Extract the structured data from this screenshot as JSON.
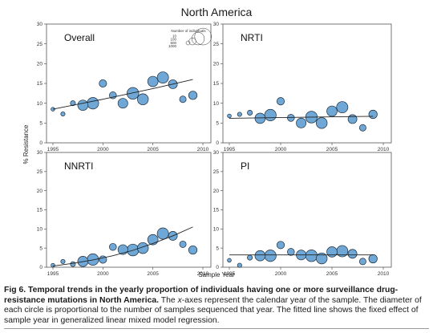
{
  "figure": {
    "title": "North America",
    "ylabel": "% Resistance",
    "xlabel": "Sample Year",
    "legend": {
      "title": "Number of individuals",
      "entries": [
        "10",
        "100",
        "500",
        "1000"
      ]
    }
  },
  "chart_data": [
    {
      "type": "scatter",
      "title": "Overall",
      "xlim": [
        1995,
        2010
      ],
      "ylim": [
        0,
        30
      ],
      "xticks": [
        1995,
        2000,
        2005,
        2010
      ],
      "yticks": [
        0,
        5,
        10,
        15,
        20,
        25,
        30
      ],
      "points": [
        {
          "x": 1995,
          "y": 8.5,
          "n": 8
        },
        {
          "x": 1996,
          "y": 7.3,
          "n": 15
        },
        {
          "x": 1997,
          "y": 10.0,
          "n": 30
        },
        {
          "x": 1998,
          "y": 9.5,
          "n": 300
        },
        {
          "x": 1999,
          "y": 10.0,
          "n": 400
        },
        {
          "x": 2000,
          "y": 15.0,
          "n": 120
        },
        {
          "x": 2001,
          "y": 12.0,
          "n": 100
        },
        {
          "x": 2002,
          "y": 10.0,
          "n": 260
        },
        {
          "x": 2003,
          "y": 12.5,
          "n": 420
        },
        {
          "x": 2004,
          "y": 11.0,
          "n": 350
        },
        {
          "x": 2005,
          "y": 15.5,
          "n": 300
        },
        {
          "x": 2006,
          "y": 16.5,
          "n": 380
        },
        {
          "x": 2007,
          "y": 14.8,
          "n": 200
        },
        {
          "x": 2008,
          "y": 11.0,
          "n": 80
        },
        {
          "x": 2009,
          "y": 12.0,
          "n": 170
        }
      ],
      "fit": [
        [
          1995,
          8.5
        ],
        [
          2000,
          11.0
        ],
        [
          2005,
          13.7
        ],
        [
          2009,
          16.0
        ]
      ]
    },
    {
      "type": "scatter",
      "title": "NRTI",
      "xlim": [
        1995,
        2010
      ],
      "ylim": [
        0,
        30
      ],
      "xticks": [
        1995,
        2000,
        2005,
        2010
      ],
      "yticks": [
        0,
        5,
        10,
        15,
        20,
        25,
        30
      ],
      "points": [
        {
          "x": 1995,
          "y": 6.8,
          "n": 8
        },
        {
          "x": 1996,
          "y": 7.2,
          "n": 15
        },
        {
          "x": 1997,
          "y": 7.6,
          "n": 30
        },
        {
          "x": 1998,
          "y": 6.2,
          "n": 300
        },
        {
          "x": 1999,
          "y": 7.0,
          "n": 400
        },
        {
          "x": 2000,
          "y": 10.5,
          "n": 120
        },
        {
          "x": 2001,
          "y": 6.3,
          "n": 100
        },
        {
          "x": 2002,
          "y": 5.0,
          "n": 260
        },
        {
          "x": 2003,
          "y": 6.5,
          "n": 420
        },
        {
          "x": 2004,
          "y": 5.0,
          "n": 350
        },
        {
          "x": 2005,
          "y": 8.0,
          "n": 300
        },
        {
          "x": 2006,
          "y": 9.0,
          "n": 380
        },
        {
          "x": 2007,
          "y": 6.0,
          "n": 200
        },
        {
          "x": 2008,
          "y": 3.8,
          "n": 80
        },
        {
          "x": 2009,
          "y": 7.2,
          "n": 170
        }
      ],
      "fit": [
        [
          1995,
          6.2
        ],
        [
          2009,
          6.7
        ]
      ]
    },
    {
      "type": "scatter",
      "title": "NNRTI",
      "xlim": [
        1995,
        2010
      ],
      "ylim": [
        0,
        30
      ],
      "xticks": [
        1995,
        2000,
        2005,
        2010
      ],
      "yticks": [
        0,
        5,
        10,
        15,
        20,
        25,
        30
      ],
      "points": [
        {
          "x": 1995,
          "y": 0.5,
          "n": 8
        },
        {
          "x": 1996,
          "y": 1.5,
          "n": 15
        },
        {
          "x": 1997,
          "y": 0.8,
          "n": 30
        },
        {
          "x": 1998,
          "y": 1.5,
          "n": 300
        },
        {
          "x": 1999,
          "y": 2.0,
          "n": 400
        },
        {
          "x": 2000,
          "y": 2.0,
          "n": 120
        },
        {
          "x": 2001,
          "y": 5.3,
          "n": 100
        },
        {
          "x": 2002,
          "y": 4.6,
          "n": 260
        },
        {
          "x": 2003,
          "y": 4.5,
          "n": 420
        },
        {
          "x": 2004,
          "y": 5.0,
          "n": 350
        },
        {
          "x": 2005,
          "y": 7.2,
          "n": 300
        },
        {
          "x": 2006,
          "y": 8.8,
          "n": 380
        },
        {
          "x": 2007,
          "y": 8.2,
          "n": 200
        },
        {
          "x": 2008,
          "y": 6.0,
          "n": 80
        },
        {
          "x": 2009,
          "y": 4.5,
          "n": 170
        }
      ],
      "fit": [
        [
          1995,
          0.3
        ],
        [
          1997,
          1.0
        ],
        [
          1999,
          1.9
        ],
        [
          2001,
          3.0
        ],
        [
          2003,
          4.4
        ],
        [
          2005,
          6.2
        ],
        [
          2007,
          8.2
        ],
        [
          2009,
          10.5
        ]
      ]
    },
    {
      "type": "scatter",
      "title": "PI",
      "xlim": [
        1995,
        2010
      ],
      "ylim": [
        0,
        30
      ],
      "xticks": [
        1995,
        2000,
        2005,
        2010
      ],
      "yticks": [
        0,
        5,
        10,
        15,
        20,
        25,
        30
      ],
      "points": [
        {
          "x": 1995,
          "y": 1.8,
          "n": 8
        },
        {
          "x": 1996,
          "y": 0.5,
          "n": 15
        },
        {
          "x": 1997,
          "y": 2.5,
          "n": 30
        },
        {
          "x": 1998,
          "y": 3.0,
          "n": 300
        },
        {
          "x": 1999,
          "y": 3.0,
          "n": 400
        },
        {
          "x": 2000,
          "y": 5.8,
          "n": 120
        },
        {
          "x": 2001,
          "y": 4.0,
          "n": 100
        },
        {
          "x": 2002,
          "y": 3.2,
          "n": 260
        },
        {
          "x": 2003,
          "y": 3.0,
          "n": 420
        },
        {
          "x": 2004,
          "y": 2.3,
          "n": 350
        },
        {
          "x": 2005,
          "y": 4.0,
          "n": 300
        },
        {
          "x": 2006,
          "y": 4.2,
          "n": 380
        },
        {
          "x": 2007,
          "y": 3.5,
          "n": 200
        },
        {
          "x": 2008,
          "y": 1.5,
          "n": 80
        },
        {
          "x": 2009,
          "y": 2.2,
          "n": 170
        }
      ],
      "fit": [
        [
          1995,
          3.2
        ],
        [
          2009,
          3.2
        ]
      ]
    }
  ],
  "colors": {
    "bubble_fill": "#6fa8d6",
    "bubble_stroke": "#1d2b3a",
    "fit_line": "#222222",
    "axis": "#555555"
  },
  "caption": {
    "label": "Fig 6.",
    "title": " Temporal trends in the yearly proportion of individuals having one or more surveillance drug-resistance mutations in North America.",
    "text_a": " The ",
    "italic": "x",
    "text_b": "-axes represent the calendar year of the sample. The diameter of each circle is proportional to the number of samples sequenced that year. The fitted line shows the fixed effect of sample year in generalized linear mixed model regression."
  }
}
